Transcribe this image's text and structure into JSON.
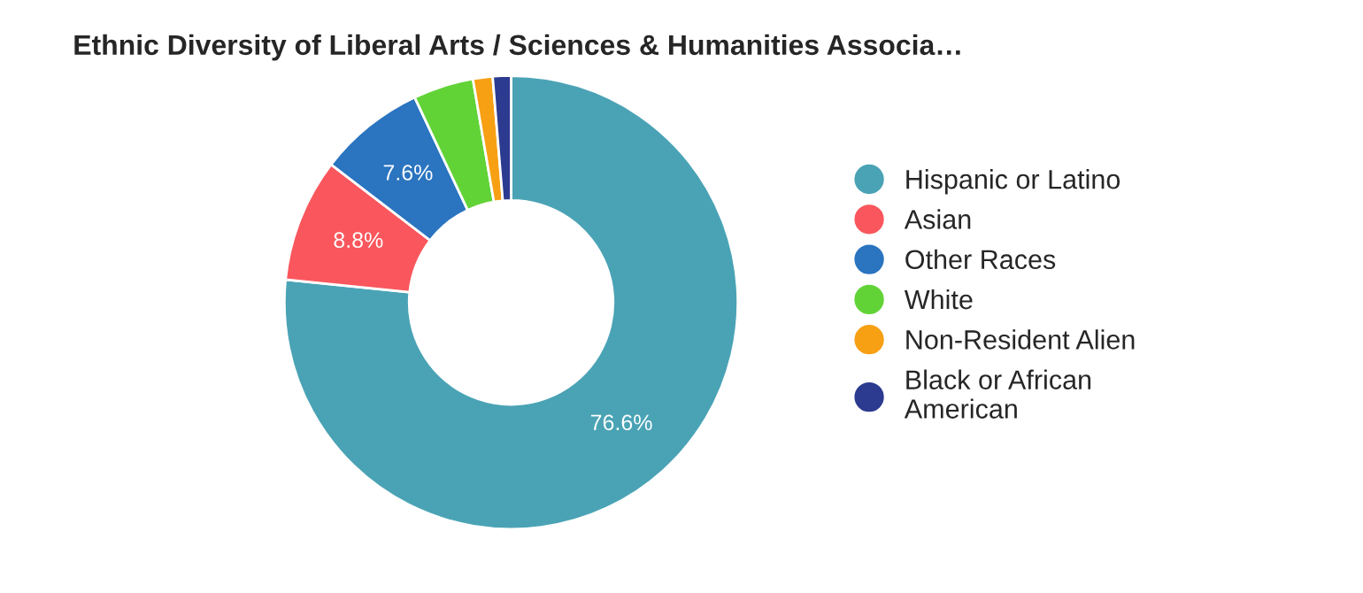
{
  "chart_data": {
    "type": "donut",
    "title": "Ethnic Diversity of Liberal Arts / Sciences & Humanities Associa…",
    "categories": [
      "Hispanic or Latino",
      "Asian",
      "Other Races",
      "White",
      "Non-Resident Alien",
      "Black or African\nAmerican"
    ],
    "values": [
      76.6,
      8.8,
      7.6,
      4.3,
      1.4,
      1.3
    ],
    "colors": [
      "#4aa3b5",
      "#f9575d",
      "#2a74c0",
      "#62d337",
      "#f7a014",
      "#2c3b8f"
    ],
    "value_labels": [
      "76.6%",
      "8.8%",
      "7.6%",
      null,
      null,
      null
    ],
    "legend": "right"
  }
}
